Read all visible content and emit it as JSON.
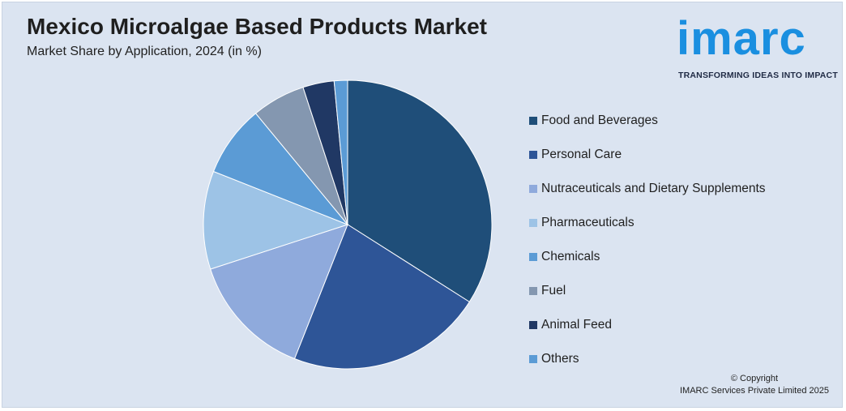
{
  "header": {
    "title": "Mexico Microalgae Based Products Market",
    "subtitle": "Market Share by Application, 2024 (in %)"
  },
  "logo": {
    "word": "imarc",
    "tagline": "TRANSFORMING IDEAS INTO IMPACT"
  },
  "footer": {
    "copyright_line1": "© Copyright",
    "copyright_line2": "IMARC Services Private Limited 2025"
  },
  "chart_data": {
    "type": "pie",
    "title": "Mexico Microalgae Based Products Market",
    "subtitle": "Market Share by Application, 2024 (in %)",
    "legend_position": "right",
    "categories": [
      "Food and Beverages",
      "Personal Care",
      "Nutraceuticals and Dietary Supplements",
      "Pharmaceuticals",
      "Chemicals",
      "Fuel",
      "Animal Feed",
      "Others"
    ],
    "values": [
      34,
      22,
      14,
      11,
      8,
      6,
      3.5,
      1.5
    ],
    "colors": [
      "#1f4e79",
      "#2e5597",
      "#8faadc",
      "#9dc3e6",
      "#5b9bd5",
      "#8497b0",
      "#203864",
      "#5b9bd5"
    ]
  }
}
